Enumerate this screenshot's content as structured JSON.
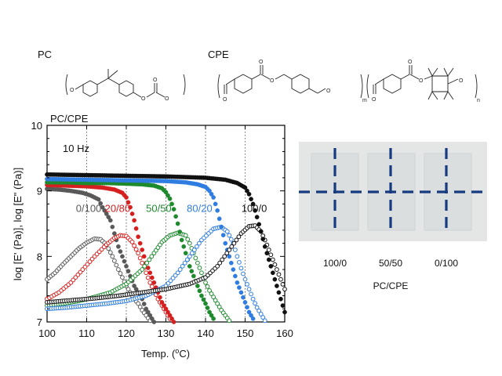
{
  "structures": {
    "pc_label": "PC",
    "cpe_label": "CPE",
    "atom_o": "O",
    "sub_m": "m",
    "sub_n": "n"
  },
  "photo": {
    "labels": [
      "100/0",
      "50/50",
      "0/100"
    ],
    "axis_label": "PC/CPE",
    "frame_color": "#e4e6e6",
    "line_color": "#173b80"
  },
  "chart_data": {
    "type": "scatter",
    "title": "PC/CPE",
    "annotation": "10 Hz",
    "xlabel": "Temp. (°C)",
    "xlabel_parts": [
      "Temp. (",
      "o",
      "C)"
    ],
    "ylabel": "log [E' (Pa)], log [E\" (Pa)]",
    "xlim": [
      100,
      160
    ],
    "ylim": [
      7,
      10
    ],
    "xticks": [
      100,
      110,
      120,
      130,
      140,
      150,
      160
    ],
    "yticks": [
      7,
      8,
      9,
      10
    ],
    "grid": "vertical dotted lines at 110, 120, 130, 140, 150",
    "legend": "none; series labels placed next to curves",
    "series": [
      {
        "name": "0/100",
        "color": "#595959",
        "label_pos": [
          110.5,
          8.68
        ],
        "storage_modulus": {
          "x": [
            100,
            103,
            106,
            109,
            111,
            113,
            114,
            116,
            117,
            118,
            119,
            120,
            121,
            122,
            123,
            124,
            125,
            126,
            127
          ],
          "y": [
            9.03,
            9.02,
            9.0,
            8.97,
            8.93,
            8.87,
            8.75,
            8.55,
            8.35,
            8.15,
            8.0,
            7.85,
            7.7,
            7.55,
            7.45,
            7.35,
            7.2,
            7.1,
            7.0
          ]
        },
        "loss_modulus": {
          "x": [
            100,
            102,
            104,
            106,
            108,
            110,
            112,
            113.5,
            115,
            116.5,
            118,
            119,
            120,
            121,
            122,
            123,
            124,
            125,
            126
          ],
          "y": [
            7.65,
            7.75,
            7.88,
            8.0,
            8.12,
            8.21,
            8.27,
            8.26,
            8.18,
            8.0,
            7.8,
            7.68,
            7.55,
            7.45,
            7.35,
            7.28,
            7.18,
            7.1,
            7.02
          ]
        }
      },
      {
        "name": "20/80",
        "color": "#d62020",
        "label_pos": [
          117.8,
          8.68
        ],
        "storage_modulus": {
          "x": [
            100,
            105,
            110,
            114,
            117,
            119,
            120,
            121,
            122,
            123,
            124,
            125,
            126,
            127,
            128,
            129,
            130,
            131,
            132
          ],
          "y": [
            9.09,
            9.08,
            9.07,
            9.05,
            9.02,
            8.97,
            8.9,
            8.75,
            8.55,
            8.3,
            8.1,
            7.9,
            7.75,
            7.6,
            7.45,
            7.3,
            7.2,
            7.1,
            7.0
          ]
        },
        "loss_modulus": {
          "x": [
            100,
            103,
            106,
            109,
            112,
            115,
            117,
            118.5,
            120,
            121.5,
            123,
            124,
            125,
            126,
            127,
            128,
            129,
            130,
            131
          ],
          "y": [
            7.35,
            7.45,
            7.6,
            7.8,
            8.0,
            8.18,
            8.28,
            8.32,
            8.31,
            8.22,
            8.05,
            7.9,
            7.75,
            7.6,
            7.48,
            7.35,
            7.25,
            7.15,
            7.05
          ]
        }
      },
      {
        "name": "50/50",
        "color": "#1e8a2e",
        "label_pos": [
          128.2,
          8.68
        ],
        "storage_modulus": {
          "x": [
            100,
            105,
            110,
            115,
            120,
            124,
            127,
            129,
            130,
            131,
            132,
            133,
            134,
            135,
            136,
            137,
            138,
            139,
            140,
            141,
            142
          ],
          "y": [
            9.13,
            9.13,
            9.12,
            9.12,
            9.11,
            9.1,
            9.08,
            9.04,
            8.98,
            8.88,
            8.72,
            8.5,
            8.25,
            8.05,
            7.85,
            7.7,
            7.55,
            7.4,
            7.28,
            7.15,
            7.05
          ]
        },
        "loss_modulus": {
          "x": [
            100,
            104,
            108,
            112,
            116,
            120,
            124,
            127,
            129,
            131,
            133,
            135,
            136,
            137,
            138,
            139,
            140,
            141,
            142,
            143,
            144,
            145,
            146
          ],
          "y": [
            7.25,
            7.28,
            7.32,
            7.38,
            7.45,
            7.58,
            7.8,
            8.05,
            8.22,
            8.32,
            8.36,
            8.32,
            8.2,
            8.05,
            7.9,
            7.75,
            7.6,
            7.48,
            7.38,
            7.28,
            7.18,
            7.1,
            7.02
          ]
        }
      },
      {
        "name": "80/20",
        "color": "#2f7de0",
        "label_pos": [
          138.5,
          8.68
        ],
        "storage_modulus": {
          "x": [
            100,
            110,
            120,
            130,
            135,
            138,
            140,
            141,
            142,
            143,
            144,
            145,
            146,
            147,
            148,
            149,
            150,
            151,
            152
          ],
          "y": [
            9.18,
            9.17,
            9.16,
            9.15,
            9.13,
            9.1,
            9.06,
            9.0,
            8.9,
            8.7,
            8.45,
            8.2,
            8.0,
            7.8,
            7.6,
            7.45,
            7.3,
            7.15,
            7.05
          ]
        },
        "loss_modulus": {
          "x": [
            100,
            105,
            110,
            115,
            120,
            125,
            130,
            133,
            136,
            139,
            142,
            144,
            145.5,
            147,
            148,
            149,
            150,
            151,
            152,
            153,
            154,
            155
          ],
          "y": [
            7.2,
            7.22,
            7.25,
            7.28,
            7.32,
            7.4,
            7.55,
            7.75,
            8.0,
            8.25,
            8.42,
            8.45,
            8.38,
            8.2,
            8.0,
            7.82,
            7.65,
            7.5,
            7.35,
            7.22,
            7.12,
            7.02
          ]
        }
      },
      {
        "name": "100/0",
        "color": "#111111",
        "label_pos": [
          152.3,
          8.68
        ],
        "storage_modulus": {
          "x": [
            100,
            110,
            120,
            130,
            140,
            145,
            148,
            150,
            151,
            152,
            153,
            154,
            155,
            156,
            157,
            158,
            159,
            160
          ],
          "y": [
            9.25,
            9.24,
            9.23,
            9.22,
            9.2,
            9.17,
            9.12,
            9.05,
            8.95,
            8.8,
            8.6,
            8.38,
            8.15,
            7.95,
            7.75,
            7.55,
            7.35,
            7.15
          ]
        },
        "loss_modulus": {
          "x": [
            100,
            106,
            112,
            118,
            124,
            130,
            136,
            140,
            143,
            146,
            149,
            151,
            152.5,
            154,
            155,
            156,
            157,
            158,
            159,
            160
          ],
          "y": [
            7.3,
            7.33,
            7.36,
            7.4,
            7.45,
            7.5,
            7.58,
            7.68,
            7.85,
            8.1,
            8.35,
            8.46,
            8.47,
            8.38,
            8.25,
            8.1,
            7.95,
            7.8,
            7.65,
            7.5
          ]
        }
      }
    ]
  }
}
